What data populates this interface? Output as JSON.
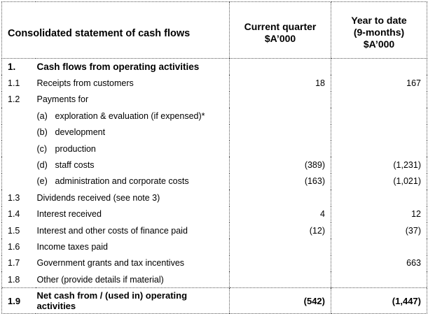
{
  "header": {
    "title": "Consolidated statement of cash flows",
    "col1": [
      "Current quarter",
      "$A’000"
    ],
    "col2": [
      "Year to date",
      "(9-months)",
      "$A’000"
    ]
  },
  "rows": [
    {
      "num": "1.",
      "label": "Cash flows from operating activities",
      "cq": "",
      "ytd": ""
    },
    {
      "num": "1.1",
      "label": "Receipts from customers",
      "cq": "18",
      "ytd": "167"
    },
    {
      "num": "1.2",
      "label": "Payments for",
      "cq": "",
      "ytd": ""
    },
    {
      "num": "",
      "sub": "(a)",
      "label": "exploration & evaluation (if expensed)*",
      "cq": "",
      "ytd": ""
    },
    {
      "num": "",
      "sub": "(b)",
      "label": "development",
      "cq": "",
      "ytd": ""
    },
    {
      "num": "",
      "sub": "(c)",
      "label": "production",
      "cq": "",
      "ytd": ""
    },
    {
      "num": "",
      "sub": "(d)",
      "label": "staff costs",
      "cq": "(389)",
      "ytd": "(1,231)"
    },
    {
      "num": "",
      "sub": "(e)",
      "label": "administration and corporate costs",
      "cq": "(163)",
      "ytd": "(1,021)"
    },
    {
      "num": "1.3",
      "label": "Dividends received (see note 3)",
      "cq": "",
      "ytd": ""
    },
    {
      "num": "1.4",
      "label": "Interest received",
      "cq": "4",
      "ytd": "12"
    },
    {
      "num": "1.5",
      "label": "Interest and other costs of finance paid",
      "cq": "(12)",
      "ytd": "(37)"
    },
    {
      "num": "1.6",
      "label": "Income taxes paid",
      "cq": "",
      "ytd": ""
    },
    {
      "num": "1.7",
      "label": "Government grants and tax incentives",
      "cq": "",
      "ytd": "663"
    },
    {
      "num": "1.8",
      "label": "Other (provide details if material)",
      "cq": "",
      "ytd": ""
    }
  ],
  "total": {
    "num": "1.9",
    "label_line1": "Net cash from / (used in) operating",
    "label_line2": "activities",
    "cq": "(542)",
    "ytd": "(1,447)"
  }
}
